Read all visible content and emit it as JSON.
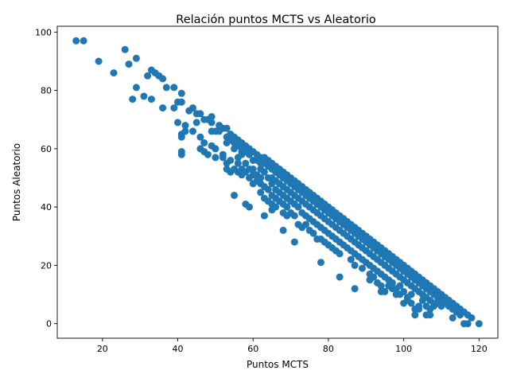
{
  "chart_data": {
    "type": "scatter",
    "title": "Relación puntos MCTS vs Aleatorio",
    "xlabel": "Puntos MCTS",
    "ylabel": "Puntos Aleatorio",
    "xlim": [
      8,
      125
    ],
    "ylim": [
      -5,
      102
    ],
    "xticks": [
      20,
      40,
      60,
      80,
      100,
      120
    ],
    "yticks": [
      0,
      20,
      40,
      60,
      80,
      100
    ],
    "grid": false,
    "legend": "none",
    "marker_color": "#1f77b4",
    "points": [
      [
        13,
        97
      ],
      [
        15,
        97
      ],
      [
        19,
        90
      ],
      [
        23,
        86
      ],
      [
        26,
        94
      ],
      [
        27,
        89
      ],
      [
        28,
        77
      ],
      [
        29,
        91
      ],
      [
        29,
        81
      ],
      [
        31,
        78
      ],
      [
        32,
        85
      ],
      [
        33,
        87
      ],
      [
        33,
        77
      ],
      [
        34,
        86
      ],
      [
        35,
        85
      ],
      [
        36,
        84
      ],
      [
        36,
        74
      ],
      [
        37,
        81
      ],
      [
        39,
        81
      ],
      [
        39,
        74
      ],
      [
        40,
        76
      ],
      [
        40,
        69
      ],
      [
        41,
        79
      ],
      [
        41,
        76
      ],
      [
        41,
        65
      ],
      [
        41,
        64
      ],
      [
        41,
        59
      ],
      [
        41,
        58
      ],
      [
        42,
        68
      ],
      [
        42,
        66
      ],
      [
        43,
        73
      ],
      [
        44,
        74
      ],
      [
        44,
        66
      ],
      [
        45,
        72
      ],
      [
        45,
        69
      ],
      [
        46,
        72
      ],
      [
        46,
        64
      ],
      [
        46,
        60
      ],
      [
        47,
        70
      ],
      [
        47,
        62
      ],
      [
        47,
        59
      ],
      [
        48,
        70
      ],
      [
        48,
        58
      ],
      [
        49,
        71
      ],
      [
        49,
        69
      ],
      [
        49,
        66
      ],
      [
        49,
        61
      ],
      [
        50,
        66
      ],
      [
        50,
        60
      ],
      [
        50,
        57
      ],
      [
        51,
        68
      ],
      [
        51,
        66
      ],
      [
        52,
        67
      ],
      [
        52,
        58
      ],
      [
        52,
        57
      ],
      [
        53,
        67
      ],
      [
        53,
        64
      ],
      [
        53,
        62
      ],
      [
        53,
        55
      ],
      [
        53,
        53
      ],
      [
        54,
        65
      ],
      [
        54,
        63
      ],
      [
        54,
        56
      ],
      [
        54,
        52
      ],
      [
        55,
        64
      ],
      [
        55,
        62
      ],
      [
        55,
        60
      ],
      [
        55,
        53
      ],
      [
        55,
        44
      ],
      [
        56,
        63
      ],
      [
        56,
        61
      ],
      [
        56,
        57
      ],
      [
        56,
        55
      ],
      [
        56,
        52
      ],
      [
        57,
        62
      ],
      [
        57,
        60
      ],
      [
        57,
        59
      ],
      [
        57,
        58
      ],
      [
        57,
        53
      ],
      [
        57,
        51
      ],
      [
        58,
        61
      ],
      [
        58,
        59
      ],
      [
        58,
        55
      ],
      [
        58,
        52
      ],
      [
        58,
        41
      ],
      [
        59,
        60
      ],
      [
        59,
        58
      ],
      [
        59,
        53
      ],
      [
        59,
        50
      ],
      [
        59,
        40
      ],
      [
        60,
        59
      ],
      [
        60,
        56
      ],
      [
        60,
        53
      ],
      [
        60,
        51
      ],
      [
        60,
        48
      ],
      [
        61,
        58
      ],
      [
        61,
        56
      ],
      [
        61,
        51
      ],
      [
        61,
        49
      ],
      [
        62,
        57
      ],
      [
        62,
        55
      ],
      [
        62,
        53
      ],
      [
        62,
        50
      ],
      [
        62,
        48
      ],
      [
        62,
        45
      ],
      [
        63,
        57
      ],
      [
        63,
        55
      ],
      [
        63,
        52
      ],
      [
        63,
        47
      ],
      [
        63,
        43
      ],
      [
        63,
        37
      ],
      [
        64,
        56
      ],
      [
        64,
        54
      ],
      [
        64,
        50
      ],
      [
        64,
        46
      ],
      [
        64,
        42
      ],
      [
        65,
        55
      ],
      [
        65,
        53
      ],
      [
        65,
        50
      ],
      [
        65,
        48
      ],
      [
        65,
        44
      ],
      [
        65,
        41
      ],
      [
        65,
        39
      ],
      [
        66,
        54
      ],
      [
        66,
        52
      ],
      [
        66,
        49
      ],
      [
        66,
        46
      ],
      [
        66,
        43
      ],
      [
        66,
        40
      ],
      [
        67,
        53
      ],
      [
        67,
        51
      ],
      [
        67,
        48
      ],
      [
        67,
        45
      ],
      [
        67,
        42
      ],
      [
        68,
        52
      ],
      [
        68,
        50
      ],
      [
        68,
        47
      ],
      [
        68,
        44
      ],
      [
        68,
        41
      ],
      [
        68,
        38
      ],
      [
        68,
        32
      ],
      [
        69,
        51
      ],
      [
        69,
        49
      ],
      [
        69,
        46
      ],
      [
        69,
        43
      ],
      [
        69,
        40
      ],
      [
        69,
        37
      ],
      [
        70,
        50
      ],
      [
        70,
        48
      ],
      [
        70,
        45
      ],
      [
        70,
        42
      ],
      [
        70,
        38
      ],
      [
        71,
        49
      ],
      [
        71,
        47
      ],
      [
        71,
        44
      ],
      [
        71,
        41
      ],
      [
        71,
        37
      ],
      [
        71,
        28
      ],
      [
        72,
        48
      ],
      [
        72,
        46
      ],
      [
        72,
        43
      ],
      [
        72,
        40
      ],
      [
        72,
        34
      ],
      [
        73,
        47
      ],
      [
        73,
        45
      ],
      [
        73,
        42
      ],
      [
        73,
        38
      ],
      [
        73,
        33
      ],
      [
        74,
        46
      ],
      [
        74,
        44
      ],
      [
        74,
        41
      ],
      [
        74,
        37
      ],
      [
        74,
        34
      ],
      [
        75,
        45
      ],
      [
        75,
        43
      ],
      [
        75,
        40
      ],
      [
        75,
        36
      ],
      [
        75,
        32
      ],
      [
        76,
        44
      ],
      [
        76,
        42
      ],
      [
        76,
        39
      ],
      [
        76,
        35
      ],
      [
        76,
        31
      ],
      [
        77,
        43
      ],
      [
        77,
        41
      ],
      [
        77,
        38
      ],
      [
        77,
        34
      ],
      [
        77,
        29
      ],
      [
        78,
        42
      ],
      [
        78,
        40
      ],
      [
        78,
        37
      ],
      [
        78,
        33
      ],
      [
        78,
        29
      ],
      [
        78,
        21
      ],
      [
        79,
        41
      ],
      [
        79,
        39
      ],
      [
        79,
        36
      ],
      [
        79,
        32
      ],
      [
        79,
        28
      ],
      [
        80,
        40
      ],
      [
        80,
        38
      ],
      [
        80,
        35
      ],
      [
        80,
        31
      ],
      [
        80,
        27
      ],
      [
        81,
        39
      ],
      [
        81,
        37
      ],
      [
        81,
        34
      ],
      [
        81,
        30
      ],
      [
        81,
        26
      ],
      [
        82,
        38
      ],
      [
        82,
        36
      ],
      [
        82,
        33
      ],
      [
        82,
        29
      ],
      [
        82,
        25
      ],
      [
        83,
        37
      ],
      [
        83,
        35
      ],
      [
        83,
        32
      ],
      [
        83,
        28
      ],
      [
        83,
        24
      ],
      [
        83,
        16
      ],
      [
        84,
        36
      ],
      [
        84,
        34
      ],
      [
        84,
        31
      ],
      [
        84,
        27
      ],
      [
        85,
        35
      ],
      [
        85,
        33
      ],
      [
        85,
        30
      ],
      [
        85,
        26
      ],
      [
        86,
        34
      ],
      [
        86,
        32
      ],
      [
        86,
        29
      ],
      [
        86,
        25
      ],
      [
        86,
        22
      ],
      [
        87,
        33
      ],
      [
        87,
        31
      ],
      [
        87,
        28
      ],
      [
        87,
        24
      ],
      [
        87,
        20
      ],
      [
        87,
        12
      ],
      [
        88,
        32
      ],
      [
        88,
        30
      ],
      [
        88,
        27
      ],
      [
        88,
        23
      ],
      [
        89,
        31
      ],
      [
        89,
        29
      ],
      [
        89,
        26
      ],
      [
        89,
        22
      ],
      [
        89,
        19
      ],
      [
        90,
        30
      ],
      [
        90,
        28
      ],
      [
        90,
        25
      ],
      [
        90,
        21
      ],
      [
        91,
        29
      ],
      [
        91,
        27
      ],
      [
        91,
        24
      ],
      [
        91,
        20
      ],
      [
        91,
        17
      ],
      [
        91,
        15
      ],
      [
        92,
        28
      ],
      [
        92,
        26
      ],
      [
        92,
        23
      ],
      [
        92,
        19
      ],
      [
        92,
        16
      ],
      [
        93,
        27
      ],
      [
        93,
        25
      ],
      [
        93,
        22
      ],
      [
        93,
        18
      ],
      [
        93,
        14
      ],
      [
        94,
        26
      ],
      [
        94,
        24
      ],
      [
        94,
        21
      ],
      [
        94,
        17
      ],
      [
        94,
        13
      ],
      [
        94,
        11
      ],
      [
        95,
        25
      ],
      [
        95,
        23
      ],
      [
        95,
        20
      ],
      [
        95,
        16
      ],
      [
        95,
        11
      ],
      [
        96,
        24
      ],
      [
        96,
        22
      ],
      [
        96,
        19
      ],
      [
        96,
        15
      ],
      [
        96,
        13
      ],
      [
        97,
        23
      ],
      [
        97,
        21
      ],
      [
        97,
        18
      ],
      [
        97,
        14
      ],
      [
        97,
        12
      ],
      [
        98,
        22
      ],
      [
        98,
        20
      ],
      [
        98,
        17
      ],
      [
        98,
        12
      ],
      [
        98,
        10
      ],
      [
        99,
        21
      ],
      [
        99,
        19
      ],
      [
        99,
        16
      ],
      [
        99,
        13
      ],
      [
        99,
        10
      ],
      [
        100,
        20
      ],
      [
        100,
        18
      ],
      [
        100,
        15
      ],
      [
        100,
        11
      ],
      [
        100,
        7
      ],
      [
        101,
        19
      ],
      [
        101,
        17
      ],
      [
        101,
        14
      ],
      [
        101,
        9
      ],
      [
        101,
        8
      ],
      [
        102,
        18
      ],
      [
        102,
        16
      ],
      [
        102,
        13
      ],
      [
        102,
        10
      ],
      [
        102,
        7
      ],
      [
        103,
        17
      ],
      [
        103,
        15
      ],
      [
        103,
        12
      ],
      [
        103,
        5
      ],
      [
        103,
        3
      ],
      [
        104,
        16
      ],
      [
        104,
        14
      ],
      [
        104,
        11
      ],
      [
        104,
        6
      ],
      [
        104,
        5
      ],
      [
        105,
        15
      ],
      [
        105,
        13
      ],
      [
        105,
        10
      ],
      [
        105,
        8
      ],
      [
        106,
        14
      ],
      [
        106,
        12
      ],
      [
        106,
        9
      ],
      [
        106,
        6
      ],
      [
        106,
        3
      ],
      [
        107,
        13
      ],
      [
        107,
        11
      ],
      [
        107,
        8
      ],
      [
        107,
        5
      ],
      [
        107,
        3
      ],
      [
        108,
        12
      ],
      [
        108,
        10
      ],
      [
        108,
        7
      ],
      [
        108,
        6
      ],
      [
        109,
        11
      ],
      [
        109,
        9
      ],
      [
        109,
        7
      ],
      [
        110,
        10
      ],
      [
        110,
        8
      ],
      [
        110,
        6
      ],
      [
        111,
        9
      ],
      [
        111,
        7
      ],
      [
        112,
        8
      ],
      [
        112,
        6
      ],
      [
        113,
        7
      ],
      [
        113,
        5
      ],
      [
        113,
        2
      ],
      [
        114,
        6
      ],
      [
        114,
        4
      ],
      [
        115,
        5
      ],
      [
        115,
        3
      ],
      [
        116,
        4
      ],
      [
        116,
        0
      ],
      [
        117,
        3
      ],
      [
        117,
        0
      ],
      [
        118,
        2
      ],
      [
        120,
        0
      ]
    ]
  }
}
